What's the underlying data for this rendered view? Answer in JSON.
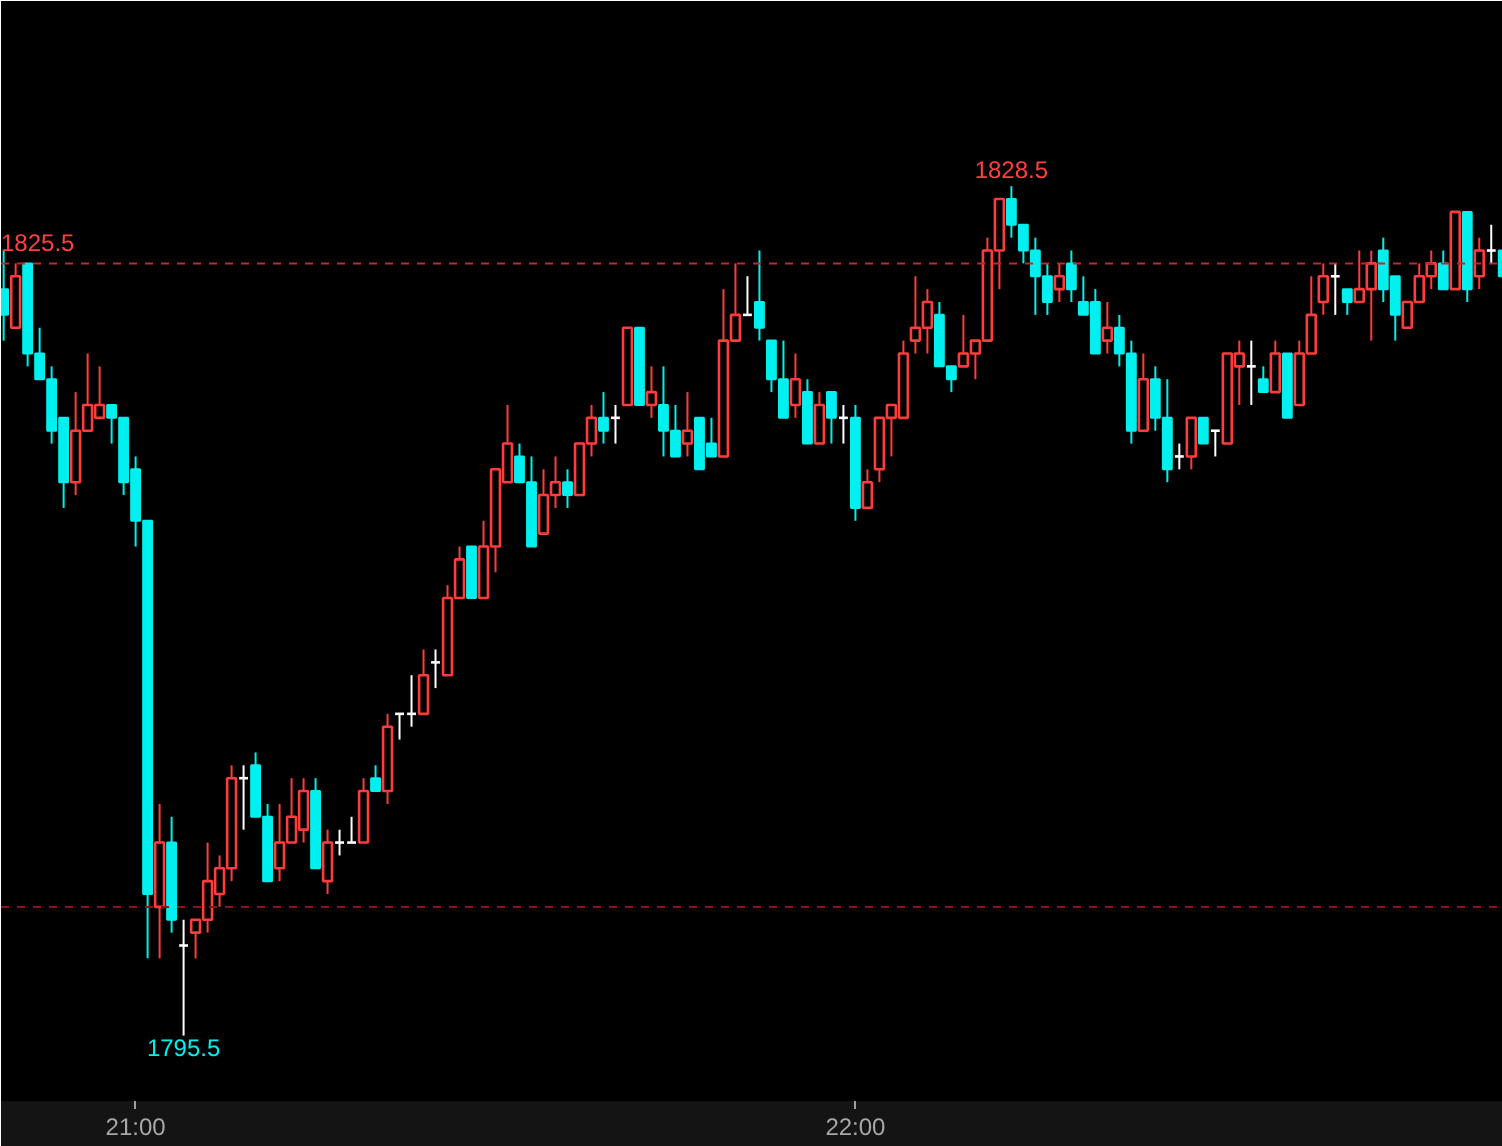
{
  "chart_data": {
    "type": "candlestick",
    "categories": [
      null,
      null,
      null,
      null,
      null,
      null,
      null,
      null,
      null,
      null,
      null,
      "21:00",
      null,
      null,
      null,
      null,
      null,
      null,
      null,
      null,
      null,
      null,
      null,
      null,
      null,
      null,
      null,
      null,
      null,
      null,
      null,
      null,
      null,
      null,
      null,
      null,
      null,
      null,
      null,
      null,
      null,
      null,
      null,
      null,
      null,
      null,
      null,
      null,
      null,
      null,
      null,
      null,
      null,
      null,
      null,
      null,
      null,
      null,
      null,
      null,
      null,
      null,
      null,
      null,
      null,
      null,
      null,
      null,
      null,
      null,
      null,
      "22:00",
      null,
      null,
      null,
      null,
      null,
      null,
      null,
      null,
      null,
      null,
      null,
      null,
      null,
      null,
      null,
      null,
      null,
      null,
      null,
      null,
      null,
      null,
      null,
      null,
      null,
      null,
      null,
      null,
      null,
      null,
      null,
      null,
      null,
      null,
      null,
      null,
      null,
      null,
      null,
      null,
      null,
      null,
      null,
      null,
      null,
      null,
      null,
      null,
      null,
      null,
      null,
      null,
      null,
      null
    ],
    "ohlc": [
      [
        1824.5,
        1826,
        1822.5,
        1823.5
      ],
      [
        1823,
        1825.5,
        1823,
        1825
      ],
      [
        1825.5,
        1825.5,
        1821.5,
        1822
      ],
      [
        1822,
        1823,
        1821,
        1821
      ],
      [
        1821,
        1821.5,
        1818.5,
        1819
      ],
      [
        1819.5,
        1819.5,
        1816,
        1817
      ],
      [
        1817,
        1820.5,
        1816.5,
        1819
      ],
      [
        1819,
        1822,
        1819,
        1820
      ],
      [
        1819.5,
        1821.5,
        1819.5,
        1820
      ],
      [
        1820,
        1820,
        1818.5,
        1819.5
      ],
      [
        1819.5,
        1819.5,
        1816.5,
        1817
      ],
      [
        1817.5,
        1818,
        1814.5,
        1815.5
      ],
      [
        1815.5,
        1815.5,
        1798.5,
        1801
      ],
      [
        1800.5,
        1804.5,
        1798.5,
        1803
      ],
      [
        1803,
        1804,
        1799.5,
        1800
      ],
      [
        1799,
        1800,
        1795.5,
        1799
      ],
      [
        1799.5,
        1800,
        1798.5,
        1800
      ],
      [
        1800,
        1803,
        1799.5,
        1801.5
      ],
      [
        1801,
        1802.5,
        1800.5,
        1802
      ],
      [
        1802,
        1806,
        1801.5,
        1805.5
      ],
      [
        1805.5,
        1806,
        1803.5,
        1805.5
      ],
      [
        1806,
        1806.5,
        1804,
        1804
      ],
      [
        1804,
        1804.5,
        1801.5,
        1801.5
      ],
      [
        1802,
        1804.5,
        1801.5,
        1803
      ],
      [
        1803,
        1805.5,
        1803,
        1804
      ],
      [
        1803.5,
        1805.5,
        1803,
        1805
      ],
      [
        1805,
        1805.5,
        1802,
        1802
      ],
      [
        1801.5,
        1803.5,
        1801,
        1803
      ],
      [
        1803,
        1803.5,
        1802.5,
        1803
      ],
      [
        1803,
        1804,
        1803,
        1803
      ],
      [
        1803,
        1805.5,
        1803,
        1805
      ],
      [
        1805.5,
        1806,
        1805,
        1805
      ],
      [
        1805,
        1808,
        1804.5,
        1807.5
      ],
      [
        1808,
        1808,
        1807,
        1808
      ],
      [
        1808,
        1809.5,
        1807.5,
        1808
      ],
      [
        1808,
        1810.5,
        1808,
        1809.5
      ],
      [
        1810,
        1810.5,
        1809,
        1810
      ],
      [
        1809.5,
        1813,
        1809.5,
        1812.5
      ],
      [
        1812.5,
        1814.5,
        1812.5,
        1814
      ],
      [
        1814.5,
        1814.5,
        1812.5,
        1812.5
      ],
      [
        1812.5,
        1815.5,
        1812.5,
        1814.5
      ],
      [
        1814.5,
        1817.5,
        1813.5,
        1817.5
      ],
      [
        1817,
        1820,
        1817,
        1818.5
      ],
      [
        1818,
        1818.5,
        1817,
        1817
      ],
      [
        1817,
        1818,
        1814.5,
        1814.5
      ],
      [
        1815,
        1817.5,
        1815,
        1816.5
      ],
      [
        1816.5,
        1818,
        1816,
        1817
      ],
      [
        1817,
        1817.5,
        1816,
        1816.5
      ],
      [
        1816.5,
        1818.5,
        1816.5,
        1818.5
      ],
      [
        1818.5,
        1820,
        1818,
        1819.5
      ],
      [
        1819.5,
        1820.5,
        1818.5,
        1819
      ],
      [
        1819.5,
        1820,
        1818.5,
        1819.5
      ],
      [
        1820,
        1823,
        1820,
        1823
      ],
      [
        1823,
        1823,
        1820,
        1820
      ],
      [
        1820,
        1821.5,
        1819.5,
        1820.5
      ],
      [
        1820,
        1821.5,
        1818,
        1819
      ],
      [
        1819,
        1820,
        1818,
        1818
      ],
      [
        1818.5,
        1820.5,
        1818,
        1819
      ],
      [
        1819.5,
        1819.5,
        1817.5,
        1817.5
      ],
      [
        1818.5,
        1819.5,
        1818,
        1818
      ],
      [
        1818,
        1824.5,
        1818,
        1822.5
      ],
      [
        1822.5,
        1825.5,
        1822.5,
        1823.5
      ],
      [
        1823.5,
        1825,
        1823.5,
        1823.5
      ],
      [
        1824,
        1826,
        1822.5,
        1823
      ],
      [
        1822.5,
        1822.5,
        1820.5,
        1821
      ],
      [
        1821,
        1822.5,
        1819.5,
        1819.5
      ],
      [
        1820,
        1822,
        1819.5,
        1821
      ],
      [
        1820.5,
        1821,
        1818.5,
        1818.5
      ],
      [
        1818.5,
        1820.5,
        1818.5,
        1820
      ],
      [
        1820.5,
        1820.5,
        1818.5,
        1819.5
      ],
      [
        1819.5,
        1820,
        1818.5,
        1819.5
      ],
      [
        1819.5,
        1820,
        1815.5,
        1816
      ],
      [
        1816,
        1817.5,
        1816,
        1817
      ],
      [
        1817.5,
        1819.5,
        1817,
        1819.5
      ],
      [
        1819.5,
        1820,
        1818,
        1820
      ],
      [
        1819.5,
        1822.5,
        1819.5,
        1822
      ],
      [
        1822.5,
        1825,
        1822,
        1823
      ],
      [
        1823,
        1824.5,
        1822,
        1824
      ],
      [
        1823.5,
        1824,
        1821.5,
        1821.5
      ],
      [
        1821.5,
        1821.5,
        1820.5,
        1821
      ],
      [
        1821.5,
        1823.5,
        1821.5,
        1822
      ],
      [
        1822,
        1822.5,
        1821,
        1822.5
      ],
      [
        1822.5,
        1826.5,
        1822.5,
        1826
      ],
      [
        1826,
        1828,
        1824.5,
        1828
      ],
      [
        1828,
        1828.5,
        1826.5,
        1827
      ],
      [
        1827,
        1827,
        1825.5,
        1826
      ],
      [
        1826,
        1826.5,
        1823.5,
        1825
      ],
      [
        1825,
        1825.5,
        1823.5,
        1824
      ],
      [
        1824.5,
        1825.5,
        1824,
        1825
      ],
      [
        1825.5,
        1826,
        1824,
        1824.5
      ],
      [
        1824,
        1825,
        1823.5,
        1823.5
      ],
      [
        1824,
        1824.5,
        1822,
        1822
      ],
      [
        1822.5,
        1824,
        1822,
        1823
      ],
      [
        1823,
        1823.5,
        1821.5,
        1822
      ],
      [
        1822,
        1822.5,
        1818.5,
        1819
      ],
      [
        1819,
        1822,
        1819,
        1821
      ],
      [
        1821,
        1821.5,
        1819,
        1819.5
      ],
      [
        1819.5,
        1821,
        1817,
        1817.5
      ],
      [
        1818,
        1818.5,
        1817.5,
        1818
      ],
      [
        1818,
        1819.5,
        1817.5,
        1819.5
      ],
      [
        1819.5,
        1819.5,
        1818.5,
        1818.5
      ],
      [
        1819,
        1819,
        1818,
        1819
      ],
      [
        1818.5,
        1822,
        1818.5,
        1822
      ],
      [
        1821.5,
        1822.5,
        1820,
        1822
      ],
      [
        1821.5,
        1822.5,
        1820,
        1821.5
      ],
      [
        1821,
        1821.5,
        1820.5,
        1820.5
      ],
      [
        1820.5,
        1822.5,
        1820.5,
        1822
      ],
      [
        1822,
        1822,
        1819.5,
        1819.5
      ],
      [
        1820,
        1822.5,
        1820,
        1822
      ],
      [
        1822,
        1825,
        1822,
        1823.5
      ],
      [
        1824,
        1825.5,
        1823.5,
        1825
      ],
      [
        1825,
        1825.5,
        1823.5,
        1825
      ],
      [
        1824.5,
        1824.5,
        1823.5,
        1824
      ],
      [
        1824,
        1826,
        1824,
        1824.5
      ],
      [
        1824.5,
        1826,
        1822.5,
        1825.5
      ],
      [
        1826,
        1826.5,
        1824,
        1824.5
      ],
      [
        1825,
        1825,
        1822.5,
        1823.5
      ],
      [
        1823,
        1824,
        1823,
        1824
      ],
      [
        1824,
        1825.5,
        1824,
        1825
      ],
      [
        1825,
        1826,
        1824.5,
        1825.5
      ],
      [
        1825.5,
        1826,
        1824.5,
        1824.5
      ],
      [
        1824.5,
        1827.5,
        1824.5,
        1827.5
      ],
      [
        1827.5,
        1827.5,
        1824,
        1824.5
      ],
      [
        1825,
        1826.5,
        1824.5,
        1826
      ],
      [
        1826,
        1827,
        1825.5,
        1826
      ],
      [
        1826,
        1826,
        1825,
        1825
      ]
    ],
    "colors": [
      "#00f0f0",
      "#ff3c3c",
      "#00f0f0",
      "#00f0f0",
      "#00f0f0",
      "#00f0f0",
      "#ff3c3c",
      "#ff3c3c",
      "#ff3c3c",
      "#00f0f0",
      "#00f0f0",
      "#00f0f0",
      "#00f0f0",
      "#ff3c3c",
      "#00f0f0",
      "#ffffff",
      "#ff3c3c",
      "#ff3c3c",
      "#ff3c3c",
      "#ff3c3c",
      "#ffffff",
      "#00f0f0",
      "#00f0f0",
      "#ff3c3c",
      "#ff3c3c",
      "#ff3c3c",
      "#00f0f0",
      "#ff3c3c",
      "#ffffff",
      "#ffffff",
      "#ff3c3c",
      "#00f0f0",
      "#ff3c3c",
      "#ffffff",
      "#ffffff",
      "#ff3c3c",
      "#ffffff",
      "#ff3c3c",
      "#ff3c3c",
      "#00f0f0",
      "#ff3c3c",
      "#ff3c3c",
      "#ff3c3c",
      "#00f0f0",
      "#00f0f0",
      "#ff3c3c",
      "#ff3c3c",
      "#00f0f0",
      "#ff3c3c",
      "#ff3c3c",
      "#00f0f0",
      "#ffffff",
      "#ff3c3c",
      "#00f0f0",
      "#ff3c3c",
      "#00f0f0",
      "#00f0f0",
      "#ff3c3c",
      "#00f0f0",
      "#00f0f0",
      "#ff3c3c",
      "#ff3c3c",
      "#ffffff",
      "#00f0f0",
      "#00f0f0",
      "#00f0f0",
      "#ff3c3c",
      "#00f0f0",
      "#ff3c3c",
      "#00f0f0",
      "#ffffff",
      "#00f0f0",
      "#ff3c3c",
      "#ff3c3c",
      "#ff3c3c",
      "#ff3c3c",
      "#ff3c3c",
      "#ff3c3c",
      "#00f0f0",
      "#00f0f0",
      "#ff3c3c",
      "#ff3c3c",
      "#ff3c3c",
      "#ff3c3c",
      "#00f0f0",
      "#00f0f0",
      "#00f0f0",
      "#00f0f0",
      "#ff3c3c",
      "#00f0f0",
      "#00f0f0",
      "#00f0f0",
      "#ff3c3c",
      "#00f0f0",
      "#00f0f0",
      "#ff3c3c",
      "#00f0f0",
      "#00f0f0",
      "#ffffff",
      "#ff3c3c",
      "#00f0f0",
      "#ffffff",
      "#ff3c3c",
      "#ff3c3c",
      "#ffffff",
      "#00f0f0",
      "#ff3c3c",
      "#00f0f0",
      "#ff3c3c",
      "#ff3c3c",
      "#ff3c3c",
      "#ffffff",
      "#00f0f0",
      "#ff3c3c",
      "#ff3c3c",
      "#00f0f0",
      "#00f0f0",
      "#ff3c3c",
      "#ff3c3c",
      "#ff3c3c",
      "#00f0f0",
      "#ff3c3c",
      "#00f0f0",
      "#ff3c3c",
      "#ffffff",
      "#00f0f0"
    ],
    "ref_lines": [
      {
        "axis": "y",
        "value": 1825.5,
        "label": "1825.5",
        "color": "#c02828",
        "line_style": "dashed"
      },
      {
        "axis": "y",
        "value": 1800.5,
        "color": "#8c1414",
        "line_style": "dashed"
      }
    ],
    "annotations": [
      {
        "text": "1828.5",
        "y": 1828.5
      },
      {
        "text": "1795.5",
        "y": 1795.5
      }
    ]
  }
}
